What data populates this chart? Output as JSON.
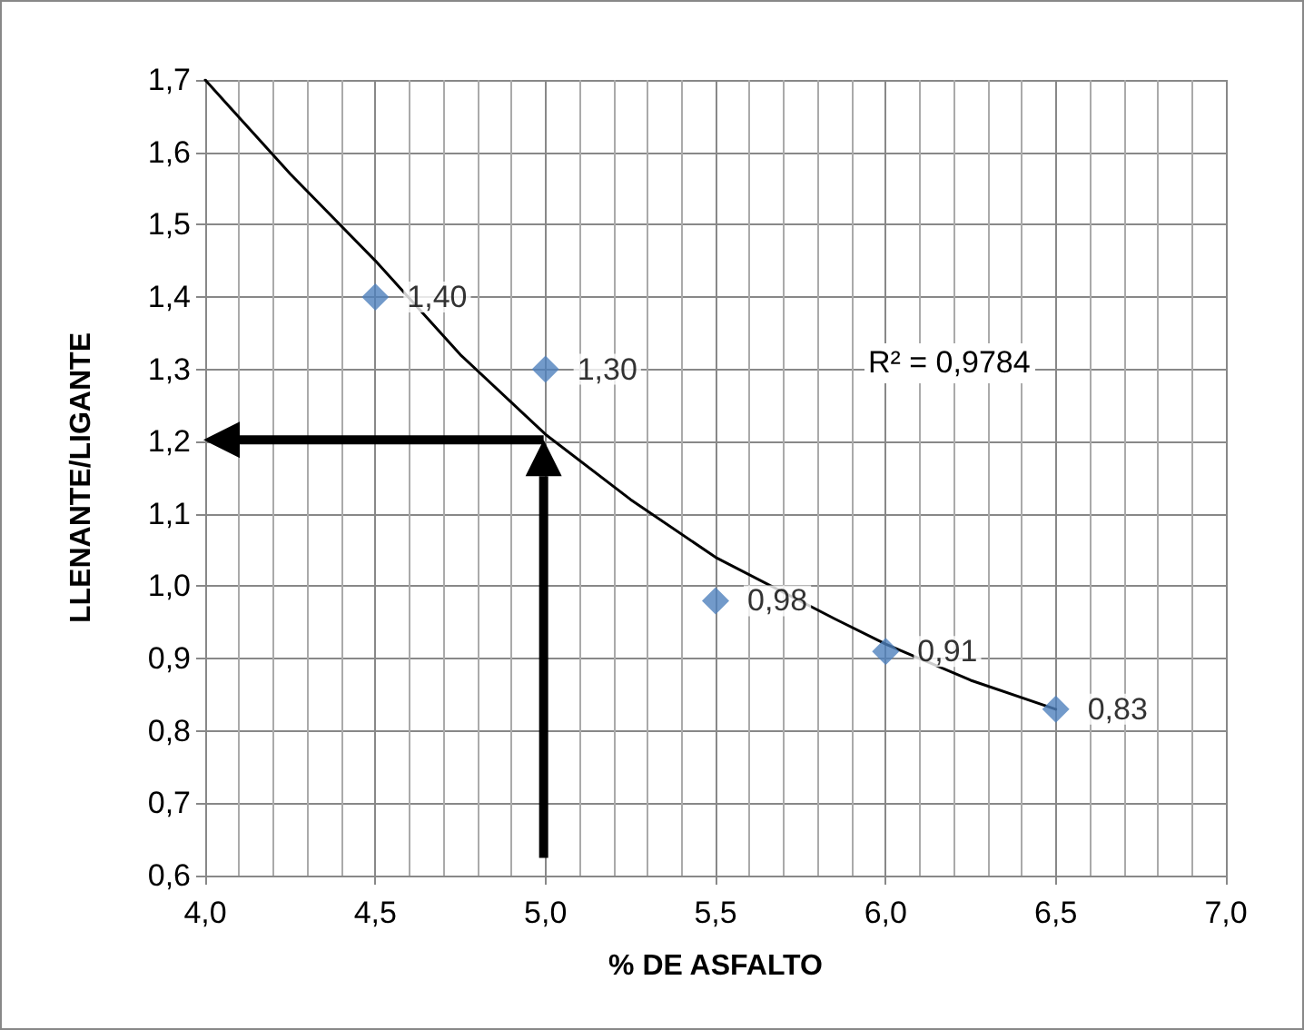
{
  "chart_data": {
    "type": "scatter",
    "xlabel": "% DE ASFALTO",
    "ylabel": "LLENANTE/LIGANTE",
    "xlim": [
      4.0,
      7.0
    ],
    "xticks": [
      {
        "value": 4.0,
        "label": "4,0"
      },
      {
        "value": 4.5,
        "label": "4,5"
      },
      {
        "value": 5.0,
        "label": "5,0"
      },
      {
        "value": 5.5,
        "label": "5,5"
      },
      {
        "value": 6.0,
        "label": "6,0"
      },
      {
        "value": 6.5,
        "label": "6,5"
      },
      {
        "value": 7.0,
        "label": "7,0"
      }
    ],
    "ylim": [
      0.6,
      1.7
    ],
    "yticks": [
      {
        "value": 0.6,
        "label": "0,6"
      },
      {
        "value": 0.7,
        "label": "0,7"
      },
      {
        "value": 0.8,
        "label": "0,8"
      },
      {
        "value": 0.9,
        "label": "0,9"
      },
      {
        "value": 1.0,
        "label": "1,0"
      },
      {
        "value": 1.1,
        "label": "1,1"
      },
      {
        "value": 1.2,
        "label": "1,2"
      },
      {
        "value": 1.3,
        "label": "1,3"
      },
      {
        "value": 1.4,
        "label": "1,4"
      },
      {
        "value": 1.5,
        "label": "1,5"
      },
      {
        "value": 1.6,
        "label": "1,6"
      },
      {
        "value": 1.7,
        "label": "1,7"
      }
    ],
    "grid": true,
    "marker": "diamond",
    "series": [
      {
        "color": "#4f81bd",
        "x": [
          4.5,
          5.0,
          5.5,
          6.0,
          6.5
        ],
        "values": [
          1.4,
          1.3,
          0.98,
          0.91,
          0.83
        ],
        "value_labels": [
          "1,40",
          "1,30",
          "0,98",
          "0,91",
          "0,83"
        ]
      },
      {
        "type": "line",
        "color": "#000000",
        "marker": "none",
        "x": [
          4.0,
          4.25,
          4.5,
          4.75,
          5.0,
          5.25,
          5.5,
          5.85,
          6.0,
          6.25,
          6.5
        ],
        "values": [
          1.7,
          1.57,
          1.45,
          1.32,
          1.21,
          1.12,
          1.04,
          0.955,
          0.92,
          0.87,
          0.83
        ]
      }
    ],
    "annotations": [
      "R² = 0,9784"
    ],
    "ref_lines": [
      {
        "axis": "x",
        "value": 5.0,
        "color": "#000000"
      },
      {
        "axis": "y",
        "value": 1.2,
        "color": "#000000"
      }
    ]
  }
}
